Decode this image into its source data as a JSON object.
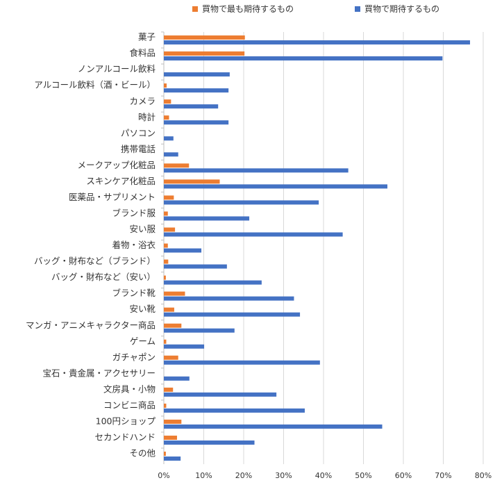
{
  "chart_data": {
    "type": "bar",
    "orientation": "horizontal",
    "categories": [
      "菓子",
      "食料品",
      "ノンアルコール飲料",
      "アルコール飲料（酒・ビール）",
      "カメラ",
      "時計",
      "パソコン",
      "携帯電話",
      "メークアップ化粧品",
      "スキンケア化粧品",
      "医薬品・サプリメント",
      "ブランド服",
      "安い服",
      "着物・浴衣",
      "バッグ・財布など（ブランド）",
      "バッグ・財布など（安い）",
      "ブランド靴",
      "安い靴",
      "マンガ・アニメキャラクター商品",
      "ゲーム",
      "ガチャポン",
      "宝石・貴金属・アクセサリー",
      "文房具・小物",
      "コンビニ商品",
      "100円ショップ",
      "セカンドハンド",
      "その他"
    ],
    "series": [
      {
        "name": "買物で最も期待するもの",
        "color": "#ED7D31",
        "values": [
          20.3,
          20.2,
          0,
          0.7,
          1.8,
          1.3,
          0,
          0,
          6.3,
          14.0,
          2.5,
          1.0,
          2.8,
          1.0,
          1.1,
          0.5,
          5.3,
          2.6,
          4.4,
          0.6,
          3.6,
          0,
          2.3,
          0.6,
          4.4,
          3.3,
          0.5
        ]
      },
      {
        "name": "買物で期待するもの",
        "color": "#4472C4",
        "values": [
          76.7,
          69.8,
          16.5,
          16.2,
          13.6,
          16.2,
          2.4,
          3.6,
          46.2,
          56.0,
          38.8,
          21.4,
          44.8,
          9.4,
          15.8,
          24.5,
          32.6,
          34.1,
          17.7,
          10.1,
          39.1,
          6.4,
          28.2,
          35.3,
          54.7,
          22.7,
          4.2
        ]
      }
    ],
    "xlim": [
      0,
      80
    ],
    "xticks": [
      "0%",
      "10%",
      "20%",
      "30%",
      "40%",
      "50%",
      "60%",
      "70%",
      "80%"
    ],
    "grid": true,
    "legend_position": "top"
  }
}
